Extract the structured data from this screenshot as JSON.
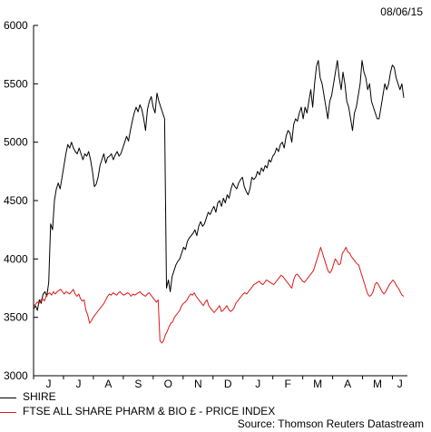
{
  "header": {
    "date": "08/06/15"
  },
  "source": "Source: Thomson Reuters Datastream",
  "colors": {
    "shire": "#000000",
    "ftse": "#e01818",
    "axis": "#000000",
    "background": "#ffffff"
  },
  "chart_data": {
    "type": "line",
    "title": "",
    "ylim": [
      3000,
      6000
    ],
    "y_ticks": [
      3000,
      3500,
      4000,
      4500,
      5000,
      5500,
      6000
    ],
    "x_ticks": [
      "J",
      "J",
      "A",
      "S",
      "O",
      "N",
      "D",
      "J",
      "F",
      "M",
      "A",
      "M",
      "J"
    ],
    "grid": false,
    "legend_position": "bottom-left",
    "series": [
      {
        "name": "SHIRE",
        "color": "#000000",
        "values": [
          3570,
          3600,
          3560,
          3650,
          3620,
          3700,
          3720,
          3680,
          3800,
          4300,
          4250,
          4500,
          4600,
          4650,
          4600,
          4700,
          4800,
          4900,
          4980,
          4950,
          5000,
          4950,
          4920,
          4900,
          4950,
          4900,
          4850,
          4900,
          4880,
          4920,
          4850,
          4750,
          4620,
          4640,
          4700,
          4800,
          4850,
          4900,
          4820,
          4870,
          4880,
          4900,
          4850,
          4890,
          4920,
          4880,
          4900,
          4950,
          5000,
          5050,
          5010,
          5100,
          5180,
          5250,
          5300,
          5260,
          5320,
          5280,
          5200,
          5100,
          5280,
          5350,
          5390,
          5300,
          5250,
          5420,
          5350,
          5300,
          5250,
          5200,
          3750,
          3820,
          3720,
          3850,
          3900,
          3950,
          3980,
          4000,
          4050,
          4100,
          4080,
          4150,
          4180,
          4200,
          4220,
          4250,
          4200,
          4280,
          4320,
          4280,
          4300,
          4350,
          4400,
          4380,
          4420,
          4450,
          4400,
          4480,
          4500,
          4450,
          4520,
          4480,
          4550,
          4520,
          4600,
          4650,
          4620,
          4600,
          4650,
          4680,
          4700,
          4620,
          4580,
          4550,
          4600,
          4700,
          4680,
          4700,
          4750,
          4720,
          4780,
          4750,
          4800,
          4780,
          4850,
          4830,
          4880,
          4900,
          4950,
          4920,
          4980,
          5000,
          4950,
          5050,
          5100,
          5080,
          5000,
          5150,
          5200,
          5180,
          5250,
          5300,
          5200,
          5300,
          5250,
          5350,
          5450,
          5300,
          5500,
          5650,
          5700,
          5550,
          5500,
          5400,
          5300,
          5200,
          5350,
          5400,
          5500,
          5600,
          5700,
          5550,
          5450,
          5600,
          5500,
          5350,
          5300,
          5200,
          5100,
          5250,
          5300,
          5400,
          5500,
          5700,
          5600,
          5550,
          5450,
          5500,
          5350,
          5300,
          5250,
          5200,
          5200,
          5300,
          5400,
          5500,
          5450,
          5500,
          5600,
          5660,
          5640,
          5550,
          5500,
          5450,
          5500,
          5380
        ]
      },
      {
        "name": "FTSE ALL SHARE PHARM & BIO £ - PRICE INDEX",
        "color": "#e01818",
        "values": [
          3600,
          3610,
          3630,
          3620,
          3650,
          3660,
          3640,
          3680,
          3700,
          3710,
          3690,
          3720,
          3700,
          3720,
          3730,
          3740,
          3720,
          3700,
          3720,
          3710,
          3700,
          3720,
          3740,
          3700,
          3680,
          3700,
          3660,
          3640,
          3650,
          3560,
          3520,
          3450,
          3470,
          3500,
          3520,
          3540,
          3560,
          3580,
          3600,
          3620,
          3650,
          3680,
          3700,
          3690,
          3710,
          3700,
          3690,
          3710,
          3720,
          3700,
          3690,
          3700,
          3710,
          3700,
          3680,
          3700,
          3690,
          3700,
          3710,
          3720,
          3700,
          3690,
          3680,
          3700,
          3710,
          3690,
          3670,
          3650,
          3630,
          3650,
          3300,
          3280,
          3300,
          3350,
          3380,
          3420,
          3450,
          3460,
          3500,
          3520,
          3540,
          3560,
          3600,
          3620,
          3630,
          3650,
          3680,
          3700,
          3690,
          3710,
          3680,
          3660,
          3640,
          3620,
          3600,
          3630,
          3650,
          3600,
          3580,
          3560,
          3540,
          3560,
          3580,
          3600,
          3550,
          3560,
          3580,
          3600,
          3570,
          3550,
          3560,
          3580,
          3620,
          3640,
          3660,
          3680,
          3700,
          3710,
          3700,
          3720,
          3740,
          3760,
          3780,
          3790,
          3800,
          3810,
          3790,
          3780,
          3800,
          3820,
          3810,
          3800,
          3790,
          3780,
          3800,
          3820,
          3840,
          3860,
          3850,
          3830,
          3810,
          3790,
          3770,
          3750,
          3820,
          3860,
          3870,
          3850,
          3830,
          3810,
          3800,
          3820,
          3840,
          3860,
          3880,
          3900,
          3950,
          4000,
          4050,
          4100,
          4050,
          4000,
          3950,
          3900,
          3880,
          3900,
          3950,
          4000,
          3980,
          3950,
          3960,
          4050,
          4070,
          4100,
          4060,
          4050,
          4020,
          4000,
          3980,
          3960,
          3950,
          3900,
          3850,
          3800,
          3750,
          3700,
          3680,
          3690,
          3720,
          3780,
          3800,
          3780,
          3750,
          3720,
          3700,
          3720,
          3750,
          3780,
          3800,
          3820,
          3800,
          3770,
          3750,
          3720,
          3690,
          3680
        ]
      }
    ]
  }
}
